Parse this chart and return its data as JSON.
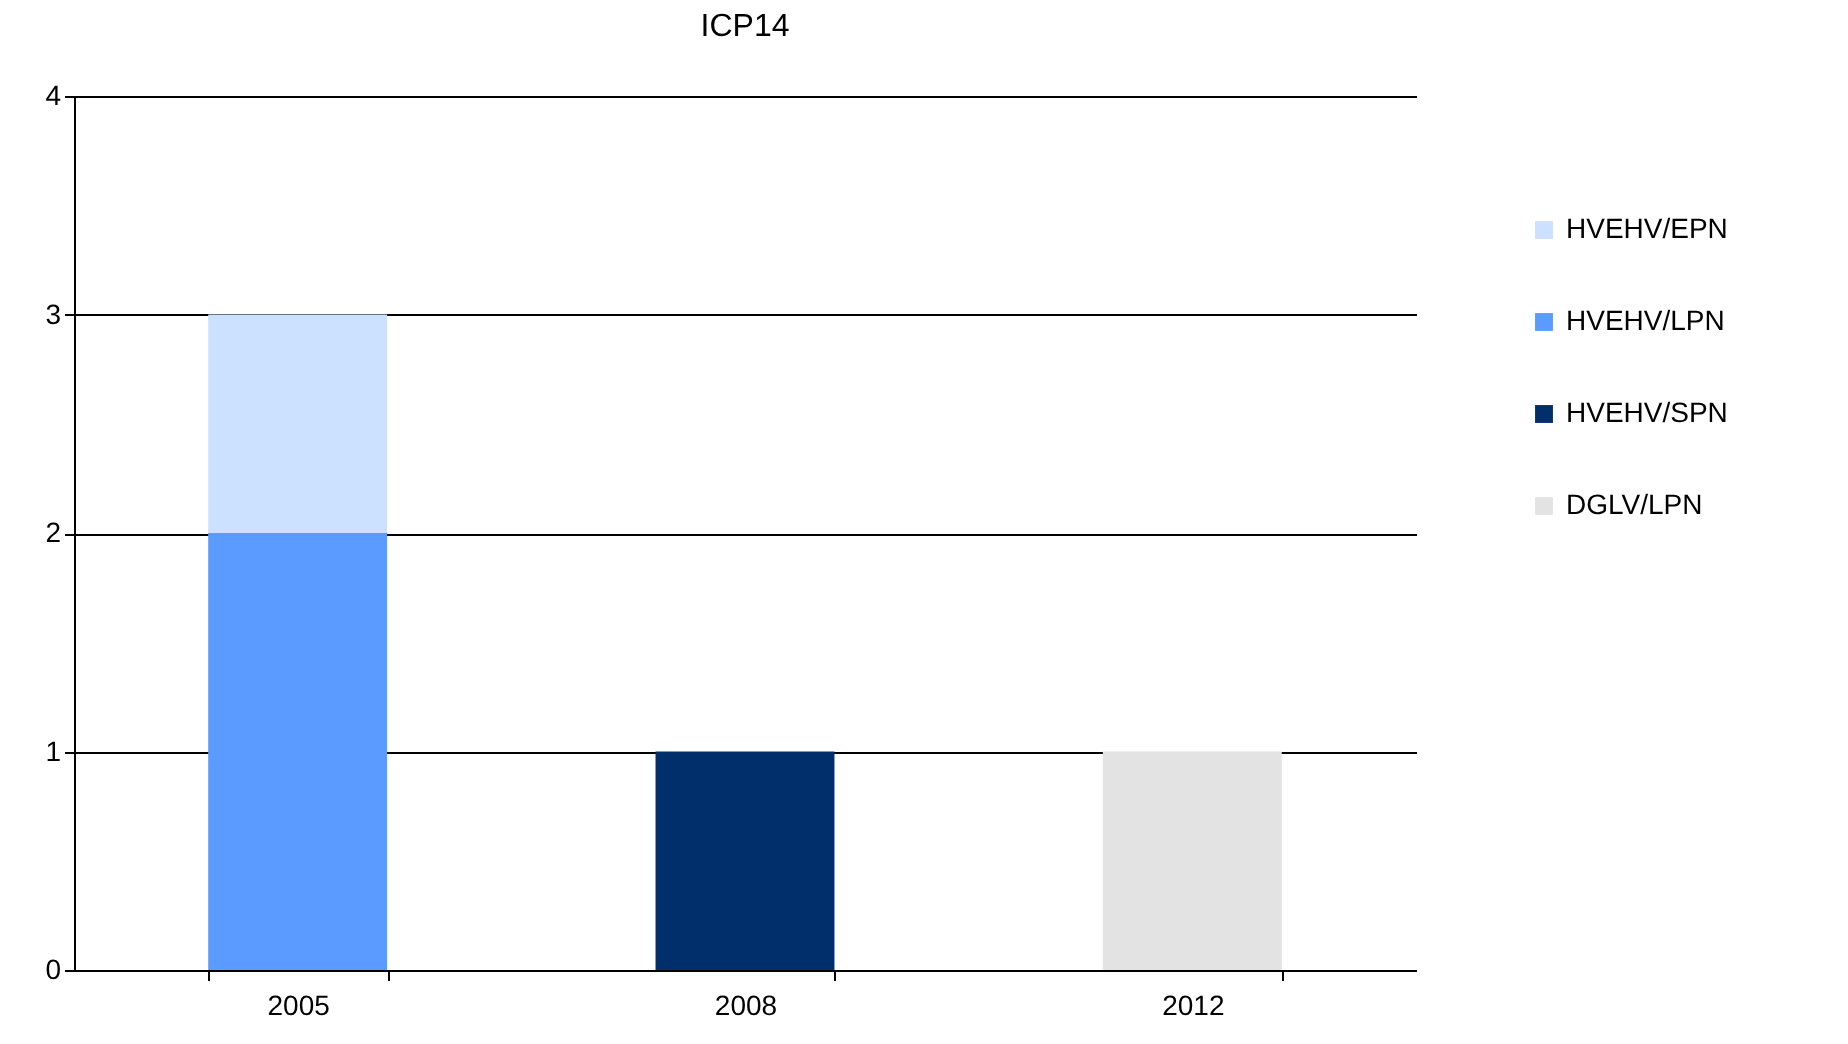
{
  "chart_data": {
    "type": "bar",
    "title": "ICP14",
    "categories": [
      "2005",
      "2008",
      "2012"
    ],
    "stacked": true,
    "series": [
      {
        "name": "DGLV/LPN",
        "color": "#e3e3e3",
        "values": [
          null,
          null,
          1
        ]
      },
      {
        "name": "HVEHV/SPN",
        "color": "#002f6c",
        "values": [
          null,
          1,
          null
        ]
      },
      {
        "name": "HVEHV/LPN",
        "color": "#5b9bff",
        "values": [
          2,
          null,
          null
        ]
      },
      {
        "name": "HVEHV/EPN",
        "color": "#cce0ff",
        "values": [
          1,
          null,
          null
        ]
      }
    ],
    "ylim": [
      0,
      4
    ],
    "yticks": [
      0,
      1,
      2,
      3,
      4
    ],
    "grid": "y",
    "legend": "right"
  }
}
